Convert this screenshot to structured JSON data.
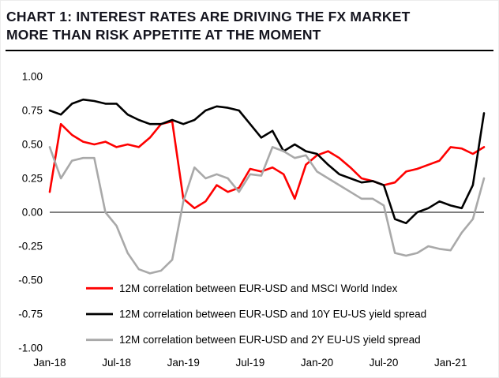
{
  "header": {
    "title_lines": [
      "CHART 1: INTEREST RATES ARE DRIVING THE FX MARKET",
      "MORE THAN RISK APPETITE AT THE MOMENT"
    ],
    "title_color": "#15151f",
    "rule_color": "#000000"
  },
  "chart_data": {
    "type": "line",
    "title": "",
    "xlabel": "",
    "ylabel": "",
    "ylim": [
      -1.0,
      1.0
    ],
    "grid": "zero-line-only",
    "legend_position": "inside-bottom-left",
    "x": [
      "Jan-18",
      "Feb-18",
      "Mar-18",
      "Apr-18",
      "May-18",
      "Jun-18",
      "Jul-18",
      "Aug-18",
      "Sep-18",
      "Oct-18",
      "Nov-18",
      "Dec-18",
      "Jan-19",
      "Feb-19",
      "Mar-19",
      "Apr-19",
      "May-19",
      "Jun-19",
      "Jul-19",
      "Aug-19",
      "Sep-19",
      "Oct-19",
      "Nov-19",
      "Dec-19",
      "Jan-20",
      "Feb-20",
      "Mar-20",
      "Apr-20",
      "May-20",
      "Jun-20",
      "Jul-20",
      "Aug-20",
      "Sep-20",
      "Oct-20",
      "Nov-20",
      "Dec-20",
      "Jan-21",
      "Feb-21",
      "Mar-21",
      "Apr-21"
    ],
    "x_ticks": [
      {
        "index": 0,
        "label": "Jan-18"
      },
      {
        "index": 6,
        "label": "Jul-18"
      },
      {
        "index": 12,
        "label": "Jan-19"
      },
      {
        "index": 18,
        "label": "Jul-19"
      },
      {
        "index": 24,
        "label": "Jan-20"
      },
      {
        "index": 30,
        "label": "Jul-20"
      },
      {
        "index": 36,
        "label": "Jan-21"
      }
    ],
    "y_tick_labels": [
      "1.00",
      "0.75",
      "0.50",
      "0.25",
      "0.00",
      "-0.25",
      "-0.50",
      "-0.75",
      "-1.00"
    ],
    "series": [
      {
        "id": "msci-world",
        "name": "12M correlation between EUR-USD and MSCI World Index",
        "color": "#fe0000",
        "values": [
          0.15,
          0.65,
          0.57,
          0.52,
          0.5,
          0.52,
          0.48,
          0.5,
          0.48,
          0.55,
          0.65,
          0.67,
          0.1,
          0.03,
          0.08,
          0.2,
          0.15,
          0.18,
          0.32,
          0.3,
          0.33,
          0.28,
          0.1,
          0.35,
          0.42,
          0.45,
          0.4,
          0.33,
          0.25,
          0.23,
          0.2,
          0.22,
          0.3,
          0.32,
          0.35,
          0.38,
          0.48,
          0.47,
          0.43,
          0.48
        ]
      },
      {
        "id": "10y-spread",
        "name": "12M correlation between EUR-USD and 10Y EU-US yield spread",
        "color": "#000000",
        "values": [
          0.75,
          0.72,
          0.8,
          0.83,
          0.82,
          0.8,
          0.8,
          0.72,
          0.68,
          0.65,
          0.65,
          0.68,
          0.65,
          0.68,
          0.75,
          0.78,
          0.77,
          0.75,
          0.65,
          0.55,
          0.6,
          0.45,
          0.5,
          0.45,
          0.43,
          0.35,
          0.28,
          0.25,
          0.22,
          0.23,
          0.2,
          -0.05,
          -0.08,
          0.0,
          0.03,
          0.08,
          0.05,
          0.03,
          0.2,
          0.73
        ]
      },
      {
        "id": "2y-spread",
        "name": "12M correlation between EUR-USD and 2Y EU-US yield spread",
        "color": "#a9a9a9",
        "values": [
          0.48,
          0.25,
          0.38,
          0.4,
          0.4,
          0.0,
          -0.1,
          -0.3,
          -0.42,
          -0.45,
          -0.43,
          -0.35,
          0.08,
          0.33,
          0.25,
          0.28,
          0.25,
          0.15,
          0.28,
          0.27,
          0.48,
          0.45,
          0.4,
          0.42,
          0.3,
          0.25,
          0.2,
          0.15,
          0.1,
          0.1,
          0.05,
          -0.3,
          -0.32,
          -0.3,
          -0.25,
          -0.27,
          -0.28,
          -0.15,
          -0.05,
          0.25
        ]
      }
    ]
  }
}
